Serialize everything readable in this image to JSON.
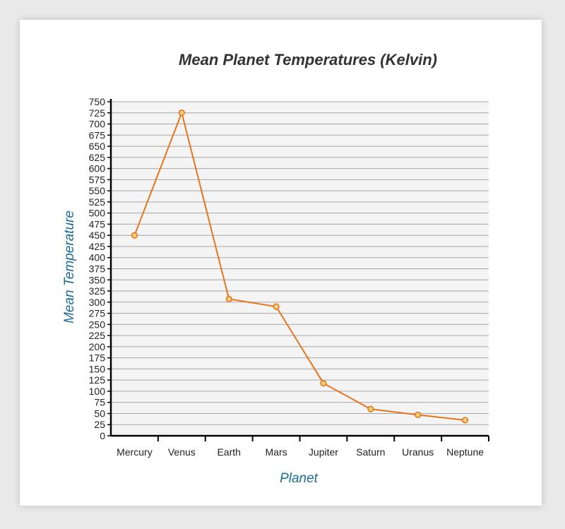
{
  "chart_data": {
    "type": "line",
    "title": "Mean Planet Temperatures (Kelvin)",
    "xlabel": "Planet",
    "ylabel": "Mean Temperature",
    "categories": [
      "Mercury",
      "Venus",
      "Earth",
      "Mars",
      "Jupiter",
      "Saturn",
      "Uranus",
      "Neptune"
    ],
    "series": [
      {
        "values": [
          450,
          725,
          307,
          290,
          118,
          60,
          47,
          35
        ]
      }
    ],
    "ylim": [
      0,
      750
    ],
    "ytick_step": 25,
    "grid": true,
    "legend": "none",
    "colors": {
      "line": "#e8741c",
      "marker_fill": "#f6d27c",
      "grid": "#a6a6a6",
      "plot_bg": "#f4f4f4",
      "axis_label": "#1b6c9b"
    }
  }
}
